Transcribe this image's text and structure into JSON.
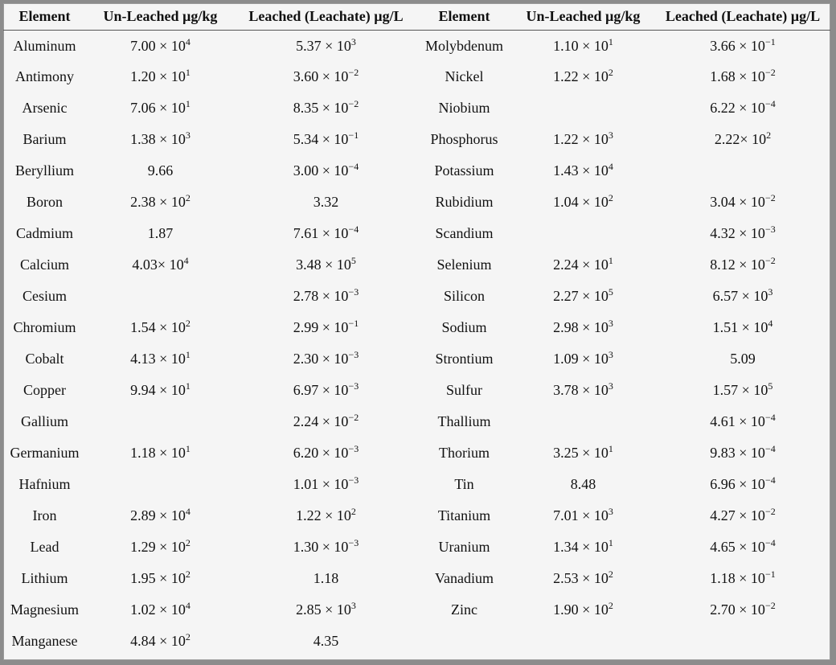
{
  "table": {
    "headers": [
      "Element",
      "Un-Leached µg/kg",
      "Leached (Leachate) µg/L",
      "Element",
      "Un-Leached µg/kg",
      "Leached (Leachate) µg/L"
    ],
    "rows": [
      [
        "Aluminum",
        "7.00 × 10^4",
        "5.37 × 10^3",
        "Molybdenum",
        "1.10 × 10^1",
        "3.66 × 10^−1"
      ],
      [
        "Antimony",
        "1.20 × 10^1",
        "3.60 × 10^−2",
        "Nickel",
        "1.22 × 10^2",
        "1.68 × 10^−2"
      ],
      [
        "Arsenic",
        "7.06 × 10^1",
        "8.35 × 10^−2",
        "Niobium",
        "",
        "6.22 × 10^−4"
      ],
      [
        "Barium",
        "1.38 × 10^3",
        "5.34 × 10^−1",
        "Phosphorus",
        "1.22 × 10^3",
        "2.22× 10^2"
      ],
      [
        "Beryllium",
        "9.66",
        "3.00 × 10^−4",
        "Potassium",
        "1.43 × 10^4",
        ""
      ],
      [
        "Boron",
        "2.38 × 10^2",
        "3.32",
        "Rubidium",
        "1.04 × 10^2",
        "3.04 × 10^−2"
      ],
      [
        "Cadmium",
        "1.87",
        "7.61 × 10^−4",
        "Scandium",
        "",
        "4.32 × 10^−3"
      ],
      [
        "Calcium",
        "4.03× 10^4",
        "3.48 × 10^5",
        "Selenium",
        "2.24 × 10^1",
        "8.12 × 10^−2"
      ],
      [
        "Cesium",
        "",
        "2.78 × 10^−3",
        "Silicon",
        "2.27 × 10^5",
        "6.57 × 10^3"
      ],
      [
        "Chromium",
        "1.54 × 10^2",
        "2.99 × 10^−1",
        "Sodium",
        "2.98 × 10^3",
        "1.51 × 10^4"
      ],
      [
        "Cobalt",
        "4.13 × 10^1",
        "2.30 × 10^−3",
        "Strontium",
        "1.09 × 10^3",
        "5.09"
      ],
      [
        "Copper",
        "9.94 × 10^1",
        "6.97 × 10^−3",
        "Sulfur",
        "3.78 × 10^3",
        "1.57 × 10^5"
      ],
      [
        "Gallium",
        "",
        "2.24 × 10^−2",
        "Thallium",
        "",
        "4.61 × 10^−4"
      ],
      [
        "Germanium",
        "1.18 × 10^1",
        "6.20 × 10^−3",
        "Thorium",
        "3.25 × 10^1",
        "9.83 × 10^−4"
      ],
      [
        "Hafnium",
        "",
        "1.01 × 10^−3",
        "Tin",
        "8.48",
        "6.96 × 10^−4"
      ],
      [
        "Iron",
        "2.89 × 10^4",
        "1.22 × 10^2",
        "Titanium",
        "7.01 × 10^3",
        "4.27 × 10^−2"
      ],
      [
        "Lead",
        "1.29 × 10^2",
        "1.30 × 10^−3",
        "Uranium",
        "1.34 × 10^1",
        "4.65 × 10^−4"
      ],
      [
        "Lithium",
        "1.95 × 10^2",
        "1.18",
        "Vanadium",
        "2.53 × 10^2",
        "1.18 × 10^−1"
      ],
      [
        "Magnesium",
        "1.02 × 10^4",
        "2.85 × 10^3",
        "Zinc",
        "1.90 × 10^2",
        "2.70 × 10^−2"
      ],
      [
        "Manganese",
        "4.84 × 10^2",
        "4.35",
        "",
        "",
        ""
      ]
    ]
  }
}
